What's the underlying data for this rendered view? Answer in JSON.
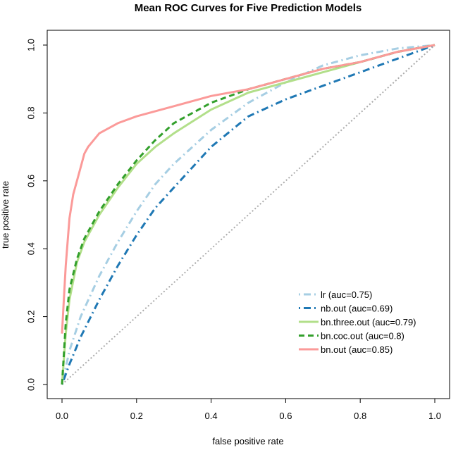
{
  "chart_data": {
    "type": "line",
    "title": "Mean ROC Curves for Five Prediction Models",
    "xlabel": "false positive rate",
    "ylabel": "true positive rate",
    "xlim": [
      0,
      1
    ],
    "ylim": [
      0,
      1
    ],
    "x_ticks": [
      "0.0",
      "0.2",
      "0.4",
      "0.6",
      "0.8",
      "1.0"
    ],
    "y_ticks": [
      "0.0",
      "0.2",
      "0.4",
      "0.6",
      "0.8",
      "1.0"
    ],
    "legend_position": "bottom-right",
    "grid": false,
    "diagonal": {
      "color": "#aaaaaa",
      "x": [
        0,
        1
      ],
      "y": [
        0,
        1
      ]
    },
    "series": [
      {
        "name": "lr (auc=0.75)",
        "color": "#a6cee3",
        "dash": "dotdash",
        "x": [
          0,
          0.02,
          0.05,
          0.1,
          0.15,
          0.2,
          0.25,
          0.3,
          0.4,
          0.5,
          0.6,
          0.7,
          0.8,
          0.9,
          1.0
        ],
        "y": [
          0,
          0.1,
          0.2,
          0.32,
          0.42,
          0.51,
          0.59,
          0.65,
          0.75,
          0.83,
          0.89,
          0.94,
          0.97,
          0.99,
          1.0
        ]
      },
      {
        "name": "nb.out (auc=0.69)",
        "color": "#1f78b4",
        "dash": "dotdash",
        "x": [
          0,
          0.02,
          0.05,
          0.1,
          0.15,
          0.2,
          0.25,
          0.3,
          0.4,
          0.5,
          0.6,
          0.7,
          0.8,
          0.9,
          1.0
        ],
        "y": [
          0,
          0.06,
          0.14,
          0.25,
          0.35,
          0.44,
          0.52,
          0.58,
          0.7,
          0.79,
          0.84,
          0.88,
          0.92,
          0.96,
          1.0
        ]
      },
      {
        "name": "bn.three.out (auc=0.79)",
        "color": "#b2df8a",
        "dash": "solid",
        "x": [
          0,
          0.01,
          0.02,
          0.04,
          0.06,
          0.1,
          0.15,
          0.2,
          0.25,
          0.3,
          0.4,
          0.5,
          0.6,
          0.7,
          0.8,
          0.9,
          1.0
        ],
        "y": [
          0,
          0.15,
          0.25,
          0.36,
          0.42,
          0.5,
          0.58,
          0.65,
          0.7,
          0.74,
          0.81,
          0.86,
          0.89,
          0.92,
          0.95,
          0.98,
          1.0
        ]
      },
      {
        "name": "bn.coc.out (auc=0.8)",
        "color": "#33a02c",
        "dash": "dashed",
        "x": [
          0,
          0.01,
          0.02,
          0.04,
          0.06,
          0.1,
          0.15,
          0.2,
          0.25,
          0.3,
          0.4,
          0.5,
          0.6,
          0.7,
          0.8,
          0.9,
          1.0
        ],
        "y": [
          0,
          0.18,
          0.28,
          0.37,
          0.43,
          0.51,
          0.59,
          0.66,
          0.72,
          0.77,
          0.83,
          0.87,
          0.9,
          0.93,
          0.95,
          0.98,
          1.0
        ]
      },
      {
        "name": "bn.out (auc=0.85)",
        "color": "#fb9a99",
        "dash": "solid",
        "x": [
          0,
          0.005,
          0.01,
          0.02,
          0.03,
          0.05,
          0.06,
          0.07,
          0.1,
          0.15,
          0.2,
          0.3,
          0.4,
          0.5,
          0.6,
          0.7,
          0.8,
          0.9,
          1.0
        ],
        "y": [
          0.15,
          0.25,
          0.35,
          0.49,
          0.56,
          0.64,
          0.68,
          0.7,
          0.74,
          0.77,
          0.79,
          0.82,
          0.85,
          0.87,
          0.9,
          0.93,
          0.95,
          0.98,
          1.0
        ]
      }
    ]
  }
}
